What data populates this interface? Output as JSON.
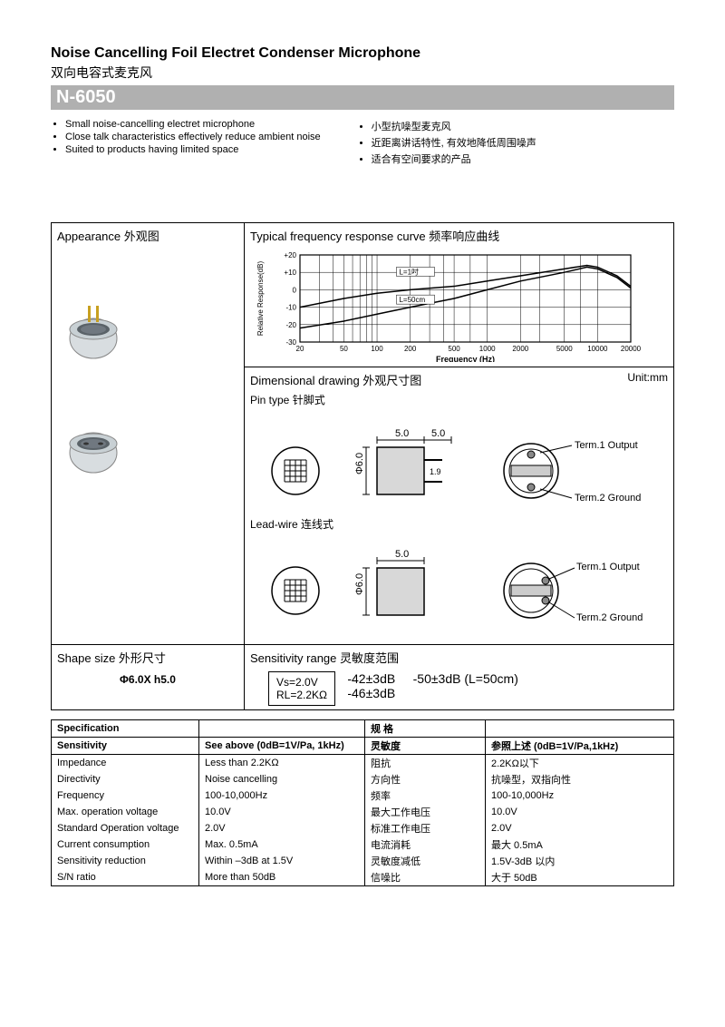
{
  "titles": {
    "en": "Noise Cancelling Foil Electret Condenser Microphone",
    "cn": "双向电容式麦克风",
    "model": "N-6050"
  },
  "features_en": [
    "Small noise-cancelling electret microphone",
    "Close talk characteristics effectively reduce ambient noise",
    "Suited to products having limited space"
  ],
  "features_cn": [
    "小型抗噪型麦克风",
    "近距离讲话特性, 有效地降低周围噪声",
    "适合有空间要求的产品"
  ],
  "sections": {
    "appearance": "Appearance 外观图",
    "freq": "Typical frequency response curve 频率响应曲线",
    "dim": "Dimensional drawing 外观尺寸图",
    "unit": "Unit:mm",
    "pin": "Pin type  针脚式",
    "lead": "Lead-wire 连线式",
    "shape": "Shape size  外形尺寸",
    "shape_val": "Φ6.0X h5.0",
    "sens": "Sensitivity range  灵敏度范围",
    "spec": "Specification",
    "spec_cn": "规 格"
  },
  "freq_chart": {
    "ylabel": "Relative Response(dB)",
    "xlabel": "Frequency (Hz)",
    "yticks": [
      -30,
      -20,
      -10,
      0,
      10,
      20
    ],
    "xticks": [
      20,
      50,
      100,
      200,
      500,
      1000,
      2000,
      5000,
      10000,
      20000
    ],
    "legend": [
      "L=1吋",
      "L=50cm"
    ],
    "curve1": [
      [
        20,
        -10
      ],
      [
        50,
        -5
      ],
      [
        100,
        -2
      ],
      [
        200,
        0
      ],
      [
        500,
        2
      ],
      [
        1000,
        5
      ],
      [
        2000,
        8
      ],
      [
        5000,
        12
      ],
      [
        8000,
        14
      ],
      [
        10000,
        13
      ],
      [
        15000,
        8
      ],
      [
        20000,
        2
      ]
    ],
    "curve2": [
      [
        20,
        -22
      ],
      [
        50,
        -18
      ],
      [
        100,
        -14
      ],
      [
        200,
        -10
      ],
      [
        500,
        -5
      ],
      [
        1000,
        0
      ],
      [
        2000,
        5
      ],
      [
        5000,
        10
      ],
      [
        8000,
        13
      ],
      [
        10000,
        12
      ],
      [
        15000,
        7
      ],
      [
        20000,
        1
      ]
    ]
  },
  "dim": {
    "w": "5.0",
    "pin": "5.0",
    "d": "Φ6.0",
    "pinh": "1.9",
    "t1": "Term.1 Output",
    "t2": "Term.2 Ground"
  },
  "sensitivity": {
    "vs": "Vs=2.0V",
    "rl": "RL=2.2KΩ",
    "v1": "-42±3dB",
    "v2": "-46±3dB",
    "v3": "-50±3dB (L=50cm)"
  },
  "spec_rows": [
    [
      "Sensitivity",
      "See above (0dB=1V/Pa, 1kHz)",
      "灵敏度",
      "参照上述 (0dB=1V/Pa,1kHz)"
    ],
    [
      "Impedance",
      "Less than 2.2KΩ",
      "阻抗",
      "2.2KΩ以下"
    ],
    [
      "Directivity",
      "Noise cancelling",
      "方向性",
      "抗噪型，双指向性"
    ],
    [
      "Frequency",
      "100-10,000Hz",
      "频率",
      "100-10,000Hz"
    ],
    [
      "Max. operation voltage",
      "10.0V",
      "最大工作电压",
      "10.0V"
    ],
    [
      "Standard Operation voltage",
      "2.0V",
      "标准工作电压",
      "2.0V"
    ],
    [
      "Current consumption",
      "Max. 0.5mA",
      "电流消耗",
      "最大 0.5mA"
    ],
    [
      "Sensitivity reduction",
      "Within –3dB at 1.5V",
      "灵敏度减低",
      "1.5V-3dB 以内"
    ],
    [
      "S/N ratio",
      "More than 50dB",
      "信噪比",
      "大于 50dB"
    ]
  ]
}
